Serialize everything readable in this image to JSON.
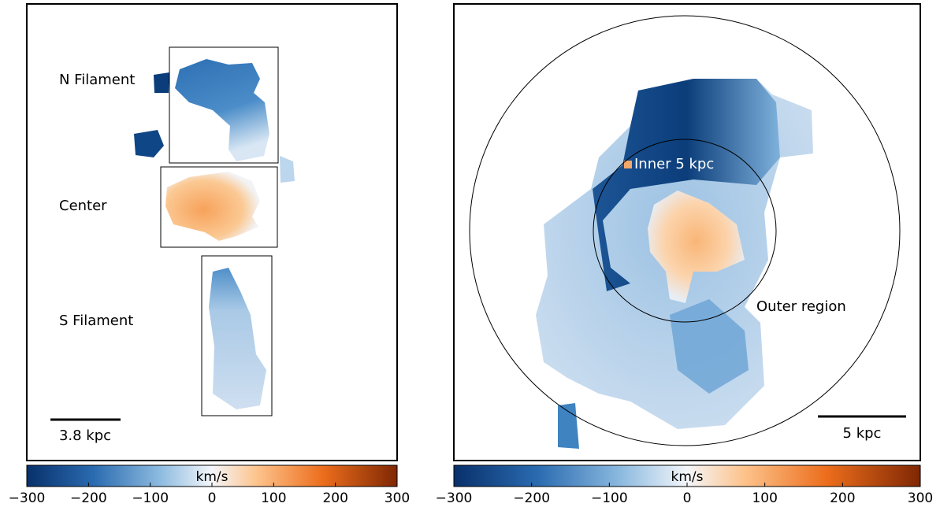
{
  "panels": [
    {
      "labels": [
        "N Filament",
        "Center",
        "S Filament"
      ],
      "scalebar": "3.8 kpc",
      "colorbar": {
        "label": "km/s",
        "lim": [
          -300,
          300
        ],
        "ticks": [
          {
            "value": -300,
            "label": "−300"
          },
          {
            "value": -200,
            "label": "−200"
          },
          {
            "value": -100,
            "label": "−100"
          },
          0,
          100,
          200,
          300
        ]
      }
    },
    {
      "labels": [
        "Inner 5 kpc",
        "Outer region"
      ],
      "scalebar": "5 kpc",
      "colorbar": {
        "label": "km/s",
        "lim": [
          -300,
          300
        ],
        "ticks": [
          {
            "value": -300,
            "label": "−300"
          },
          {
            "value": -200,
            "label": "−200"
          },
          {
            "value": -100,
            "label": "−100"
          },
          0,
          100,
          200,
          300
        ]
      }
    }
  ]
}
